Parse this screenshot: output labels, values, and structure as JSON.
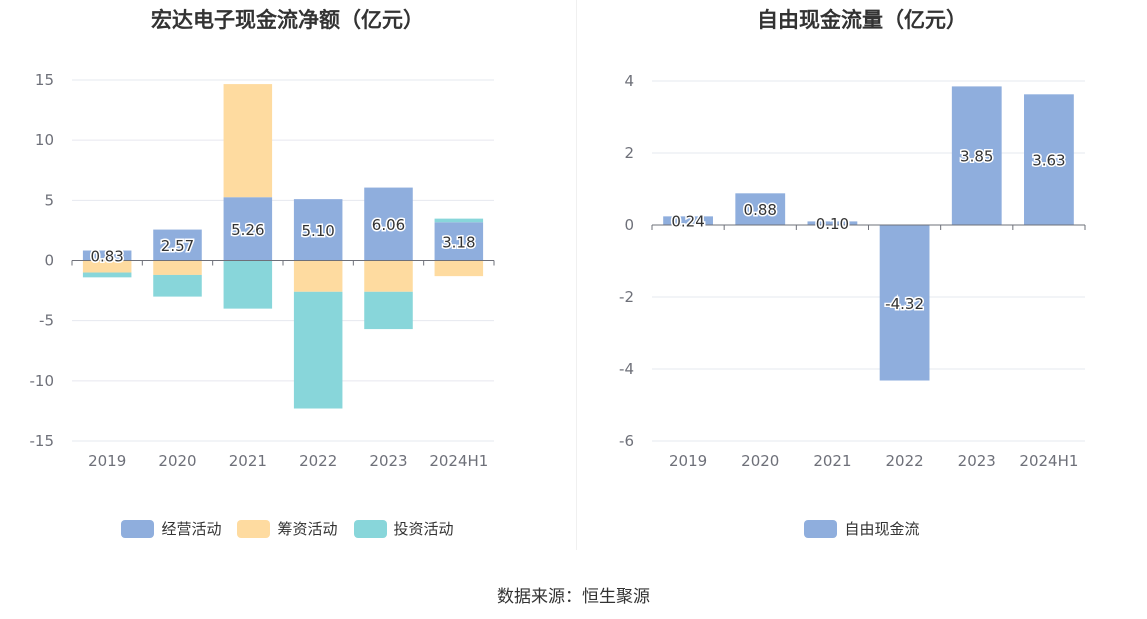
{
  "source_text": "数据来源：恒生聚源",
  "chart_data": [
    {
      "type": "bar",
      "stacked": true,
      "title": "宏达电子现金流净额（亿元）",
      "categories": [
        "2019",
        "2020",
        "2021",
        "2022",
        "2023",
        "2024H1"
      ],
      "ylim": [
        -15,
        15
      ],
      "yticks": [
        15,
        10,
        5,
        0,
        -5,
        -10,
        -15
      ],
      "grid": true,
      "legend_position": "bottom",
      "series": [
        {
          "name": "经营活动",
          "color": "#8faedd",
          "values": [
            0.83,
            2.57,
            5.26,
            5.1,
            6.06,
            3.18
          ],
          "show_labels": true
        },
        {
          "name": "筹资活动",
          "color": "#fedba0",
          "values": [
            -1.0,
            -1.2,
            9.4,
            -2.6,
            -2.6,
            -1.3
          ],
          "show_labels": false
        },
        {
          "name": "投资活动",
          "color": "#88d6da",
          "values": [
            -0.4,
            -1.8,
            -4.0,
            -9.7,
            -3.1,
            0.3
          ],
          "show_labels": false
        }
      ],
      "value_labels": [
        "0.83",
        "2.57",
        "5.26",
        "5.10",
        "6.06",
        "3.18"
      ]
    },
    {
      "type": "bar",
      "stacked": false,
      "title": "自由现金流量（亿元）",
      "categories": [
        "2019",
        "2020",
        "2021",
        "2022",
        "2023",
        "2024H1"
      ],
      "ylim": [
        -6,
        4
      ],
      "yticks": [
        4,
        2,
        0,
        -2,
        -4,
        -6
      ],
      "grid": true,
      "legend_position": "bottom",
      "series": [
        {
          "name": "自由现金流",
          "color": "#8faedd",
          "values": [
            0.24,
            0.88,
            0.1,
            -4.32,
            3.85,
            3.63
          ],
          "show_labels": true
        }
      ],
      "value_labels": [
        "0.24",
        "0.88",
        "0.10",
        "-4.32",
        "3.85",
        "3.63"
      ]
    }
  ]
}
